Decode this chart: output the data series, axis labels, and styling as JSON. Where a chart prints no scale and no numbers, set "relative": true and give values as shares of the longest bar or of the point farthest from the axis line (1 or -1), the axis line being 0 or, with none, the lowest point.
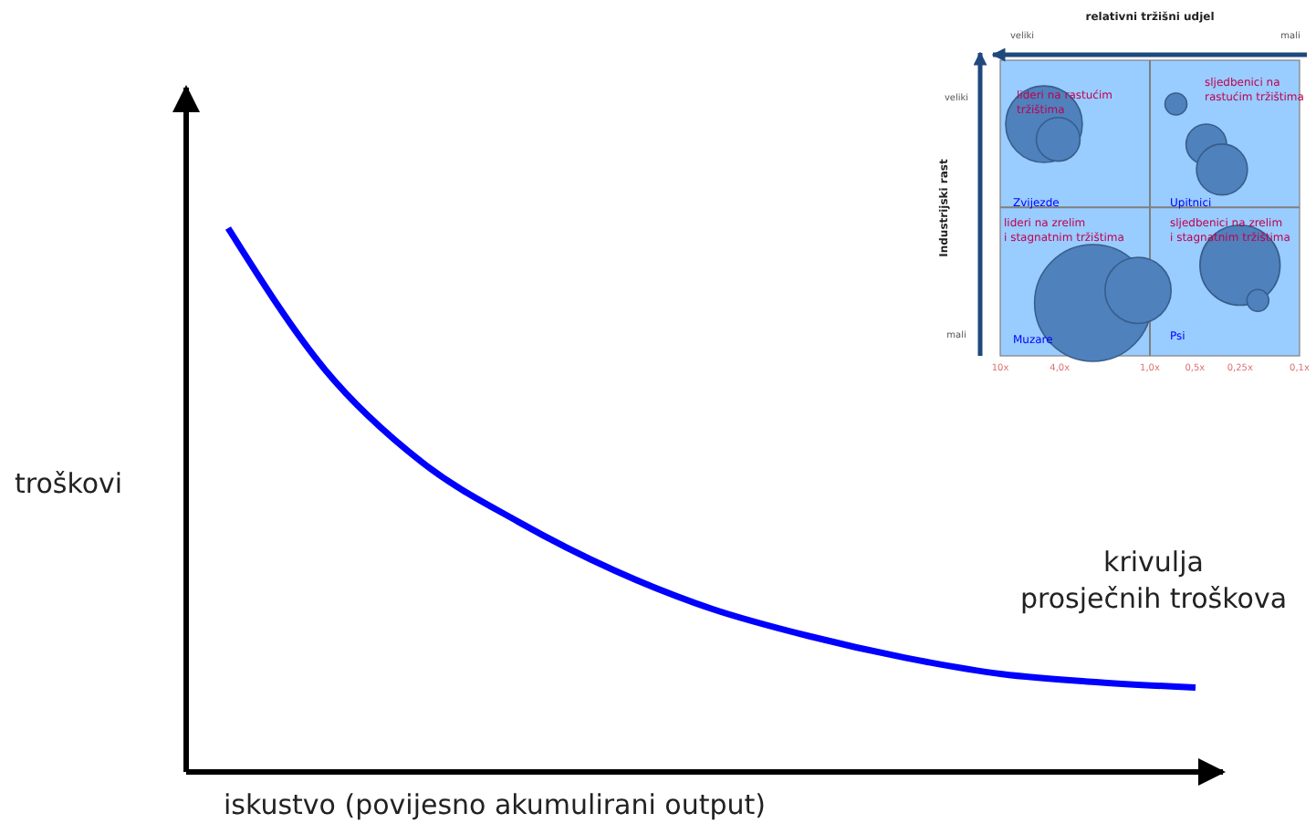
{
  "chart_data": [
    {
      "type": "line",
      "relative": true,
      "xlabel": "iskustvo (povijesno akumulirani output)",
      "ylabel": "troškovi",
      "categories": [
        null,
        null,
        null,
        null,
        null,
        null,
        null,
        null,
        null,
        null,
        null
      ],
      "series": [
        {
          "color": "#0000ff",
          "values": [
            1,
            0.74,
            0.57,
            0.46,
            0.37,
            0.3,
            0.25,
            0.21,
            0.18,
            0.165,
            0.155
          ]
        }
      ],
      "annotations": [
        "krivulja\nprosječnih troškova"
      ]
    },
    {
      "type": "bubble",
      "log": "x",
      "xlim": [
        10,
        0.1
      ],
      "relative": true,
      "xticks": [
        {
          "value": 10,
          "label": "10x"
        },
        {
          "value": 4,
          "label": "4,0x"
        },
        {
          "value": 1,
          "label": "1,0x"
        },
        {
          "value": 0.5,
          "label": "0,5x"
        },
        {
          "value": 0.25,
          "label": "0,25x"
        },
        {
          "value": 0.1,
          "label": "0,1x"
        }
      ],
      "xlabel": "relativni tržišni udjel",
      "ylabel": "Industrijski rast",
      "series": [
        {
          "color": "#4f81bd",
          "x": [
            5.1,
            4.1,
            0.67,
            0.42,
            0.33,
            2.4,
            1.2,
            0.25,
            0.19
          ],
          "values": [
            0.92,
            0.86,
            1,
            0.84,
            0.74,
            0.21,
            0.26,
            0.36,
            0.22
          ],
          "sizes": [
            0.43,
            0.14,
            0.035,
            0.12,
            0.19,
            1,
            0.32,
            0.47,
            0.035
          ]
        }
      ],
      "ref_lines": [
        {
          "axis": "x",
          "value": 1,
          "color": "#7f7f7f"
        },
        {
          "axis": "y",
          "value": 0.59,
          "color": "#7f7f7f"
        }
      ],
      "annotations": [
        "Zvijezde",
        "Upitnici",
        "Muzare",
        "Psi",
        "lideri na rastućim\ntržištima",
        "sljedbenici na\nrastućim tržištima",
        "lideri na zrelim\ni stagnatnim tržištima",
        "sljedbenici na zrelim\ni stagnatnim tržištima",
        "veliki",
        "mali",
        "veliki",
        "mali"
      ]
    }
  ]
}
